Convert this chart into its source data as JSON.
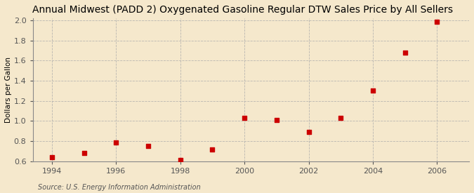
{
  "title": "Annual Midwest (PADD 2) Oxygenated Gasoline Regular DTW Sales Price by All Sellers",
  "ylabel": "Dollars per Gallon",
  "source": "Source: U.S. Energy Information Administration",
  "background_color": "#f5e8cc",
  "plot_bg_color": "#f5e8cc",
  "years": [
    1994,
    1995,
    1996,
    1997,
    1998,
    1999,
    2000,
    2001,
    2002,
    2003,
    2004,
    2005,
    2006
  ],
  "values": [
    0.64,
    0.68,
    0.79,
    0.75,
    0.61,
    0.72,
    1.03,
    1.01,
    0.89,
    1.03,
    1.3,
    1.68,
    1.99
  ],
  "marker_color": "#cc0000",
  "marker_size": 20,
  "xlim": [
    1993.4,
    2007.0
  ],
  "ylim": [
    0.6,
    2.02
  ],
  "xticks": [
    1994,
    1996,
    1998,
    2000,
    2002,
    2004,
    2006
  ],
  "yticks": [
    0.6,
    0.8,
    1.0,
    1.2,
    1.4,
    1.6,
    1.8,
    2.0
  ],
  "grid_color": "#aaaaaa",
  "title_fontsize": 10,
  "label_fontsize": 7.5,
  "tick_fontsize": 8,
  "source_fontsize": 7
}
